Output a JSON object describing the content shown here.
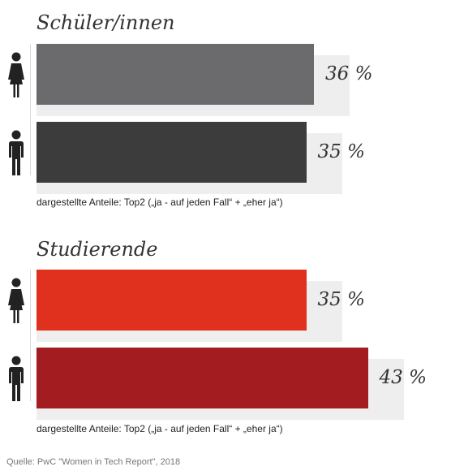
{
  "chart_data": [
    {
      "type": "bar",
      "orientation": "horizontal",
      "title": "Schüler/innen",
      "categories": [
        "female",
        "male"
      ],
      "values": [
        36,
        35
      ],
      "value_labels": [
        "36 %",
        "35 %"
      ],
      "colors": [
        "#6b6b6e",
        "#3c3c3c"
      ],
      "note": "dargestellte Anteile: Top2 („ja - auf jeden Fall“ + „eher ja“)"
    },
    {
      "type": "bar",
      "orientation": "horizontal",
      "title": "Studierende",
      "categories": [
        "female",
        "male"
      ],
      "values": [
        35,
        43
      ],
      "value_labels": [
        "35 %",
        "43 %"
      ],
      "colors": [
        "#e0301e",
        "#a31c1f"
      ],
      "note": "dargestellte Anteile: Top2 („ja - auf jeden Fall“ + „eher ja“)"
    }
  ],
  "icons": [
    "female-person-icon",
    "male-person-icon"
  ],
  "source": "Quelle: PwC \"Women in Tech Report\", 2018"
}
